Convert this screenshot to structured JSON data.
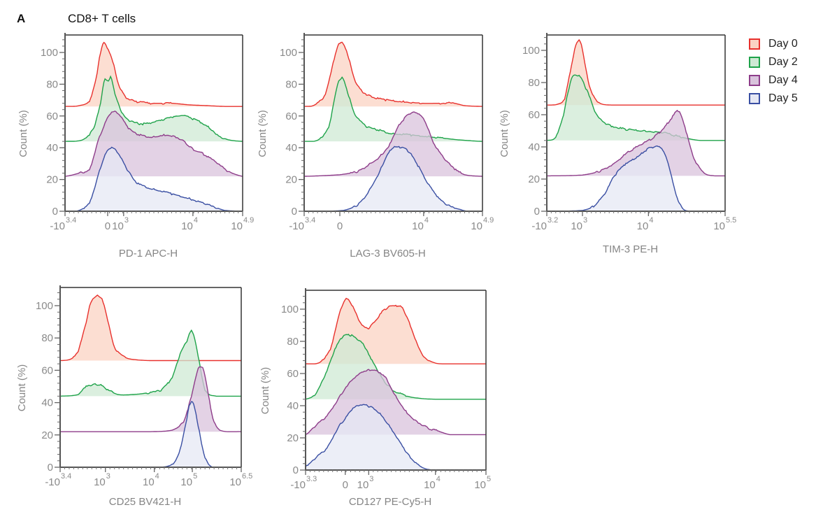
{
  "figure": {
    "panel_letter": "A",
    "title": "CD8+ T cells"
  },
  "legend": [
    {
      "label": "Day 0",
      "stroke": "#e8312d",
      "fill": "#fbd3c3"
    },
    {
      "label": "Day 2",
      "stroke": "#1fa34a",
      "fill": "#cfe9d4"
    },
    {
      "label": "Day 4",
      "stroke": "#8e3d8a",
      "fill": "#d9c3dc"
    },
    {
      "label": "Day 5",
      "stroke": "#3a4fa3",
      "fill": "#e6e8f4"
    }
  ],
  "chart_data": [
    {
      "type": "area",
      "title": "",
      "xlabel": "PD-1 APC-H",
      "ylabel": "Count  (%)",
      "ylim": [
        0,
        110
      ],
      "yticks": [
        0,
        20,
        40,
        60,
        80,
        100
      ],
      "xticks": [
        {
          "base": "-10",
          "exp": "3.4",
          "pos": 0.0
        },
        {
          "base": "0",
          "exp": "",
          "pos": 0.24
        },
        {
          "base": "10",
          "exp": "3",
          "pos": 0.33
        },
        {
          "base": "10",
          "exp": "4",
          "pos": 0.72
        },
        {
          "base": "10",
          "exp": "4.9",
          "pos": 1.0
        }
      ],
      "series": [
        {
          "name": "Day 0",
          "offset": 66,
          "x": [
            0,
            0.08,
            0.14,
            0.18,
            0.2,
            0.22,
            0.24,
            0.27,
            0.3,
            0.34,
            0.4,
            0.5,
            0.6,
            0.7,
            0.8,
            0.9,
            1.0
          ],
          "y": [
            0,
            0.5,
            4,
            20,
            34,
            40,
            36,
            28,
            14,
            6,
            3,
            2,
            2,
            1,
            0.5,
            0,
            0
          ]
        },
        {
          "name": "Day 2",
          "offset": 44,
          "x": [
            0,
            0.1,
            0.16,
            0.2,
            0.22,
            0.24,
            0.26,
            0.28,
            0.32,
            0.36,
            0.44,
            0.52,
            0.6,
            0.66,
            0.72,
            0.8,
            0.86,
            0.92,
            1.0
          ],
          "y": [
            0,
            1,
            8,
            24,
            38,
            38,
            40,
            30,
            18,
            13,
            11,
            13,
            15,
            16,
            14,
            10,
            4,
            1,
            0
          ]
        },
        {
          "name": "Day 4",
          "offset": 22,
          "x": [
            0,
            0.08,
            0.14,
            0.18,
            0.22,
            0.26,
            0.3,
            0.36,
            0.42,
            0.5,
            0.56,
            0.62,
            0.68,
            0.72,
            0.78,
            0.86,
            0.92,
            1.0
          ],
          "y": [
            0,
            2,
            5,
            20,
            32,
            40,
            39,
            30,
            26,
            25,
            26,
            25,
            21,
            17,
            14,
            8,
            3,
            0
          ]
        },
        {
          "name": "Day 5",
          "offset": 0,
          "x": [
            0,
            0.08,
            0.14,
            0.18,
            0.22,
            0.26,
            0.3,
            0.34,
            0.4,
            0.5,
            0.6,
            0.7,
            0.78,
            0.86,
            0.9,
            1.0
          ],
          "y": [
            0,
            0.5,
            6,
            20,
            34,
            40,
            36,
            28,
            18,
            14,
            11,
            8,
            5,
            2,
            0.5,
            0
          ]
        }
      ]
    },
    {
      "type": "area",
      "title": "",
      "xlabel": "LAG-3 BV605-H",
      "ylabel": "Count  (%)",
      "ylim": [
        0,
        110
      ],
      "yticks": [
        0,
        20,
        40,
        60,
        80,
        100
      ],
      "xticks": [
        {
          "base": "-10",
          "exp": "3.4",
          "pos": 0.0
        },
        {
          "base": "0",
          "exp": "",
          "pos": 0.2
        },
        {
          "base": "10",
          "exp": "4",
          "pos": 0.67
        },
        {
          "base": "10",
          "exp": "4.9",
          "pos": 1.0
        }
      ],
      "series": [
        {
          "name": "Day 0",
          "offset": 66,
          "x": [
            0,
            0.06,
            0.12,
            0.16,
            0.2,
            0.24,
            0.28,
            0.32,
            0.38,
            0.46,
            0.56,
            0.66,
            0.76,
            0.84,
            0.9,
            1.0
          ],
          "y": [
            0,
            1,
            8,
            26,
            40,
            34,
            18,
            10,
            6,
            4,
            3,
            2,
            2,
            2,
            0.5,
            0
          ]
        },
        {
          "name": "Day 2",
          "offset": 44,
          "x": [
            0,
            0.08,
            0.14,
            0.18,
            0.21,
            0.24,
            0.28,
            0.34,
            0.42,
            0.5,
            0.6,
            0.7,
            0.78,
            0.86,
            1.0
          ],
          "y": [
            0,
            1,
            10,
            32,
            40,
            32,
            18,
            10,
            7,
            5,
            4,
            3,
            2,
            1,
            0
          ]
        },
        {
          "name": "Day 4",
          "offset": 22,
          "x": [
            0,
            0.2,
            0.3,
            0.36,
            0.42,
            0.48,
            0.52,
            0.56,
            0.6,
            0.64,
            0.68,
            0.72,
            0.78,
            0.84,
            0.9,
            1.0
          ],
          "y": [
            0,
            1,
            3,
            7,
            12,
            20,
            30,
            36,
            40,
            39,
            34,
            22,
            12,
            5,
            1,
            0
          ]
        },
        {
          "name": "Day 5",
          "offset": 0,
          "x": [
            0,
            0.22,
            0.3,
            0.36,
            0.42,
            0.46,
            0.5,
            0.54,
            0.58,
            0.62,
            0.68,
            0.74,
            0.8,
            0.88,
            0.92,
            1.0
          ],
          "y": [
            0,
            0.5,
            4,
            12,
            24,
            34,
            40,
            40,
            38,
            32,
            20,
            10,
            4,
            1,
            0,
            0
          ]
        }
      ]
    },
    {
      "type": "area",
      "title": "",
      "xlabel": "TIM-3 PE-H",
      "ylabel": "Count  (%)",
      "ylim": [
        0,
        110
      ],
      "yticks": [
        0,
        20,
        40,
        60,
        80,
        100
      ],
      "xticks": [
        {
          "base": "-10",
          "exp": "3.2",
          "pos": 0.0
        },
        {
          "base": "10",
          "exp": "3",
          "pos": 0.2
        },
        {
          "base": "10",
          "exp": "4",
          "pos": 0.57
        },
        {
          "base": "10",
          "exp": "5.5",
          "pos": 1.0
        }
      ],
      "series": [
        {
          "name": "Day 0",
          "offset": 66,
          "x": [
            0,
            0.06,
            0.1,
            0.13,
            0.16,
            0.18,
            0.2,
            0.23,
            0.26,
            0.3,
            0.36,
            0.5,
            1.0
          ],
          "y": [
            0,
            0.5,
            4,
            20,
            36,
            40,
            34,
            16,
            6,
            1,
            0,
            0,
            0
          ]
        },
        {
          "name": "Day 2",
          "offset": 44,
          "x": [
            0,
            0.05,
            0.09,
            0.12,
            0.14,
            0.18,
            0.22,
            0.28,
            0.34,
            0.44,
            0.54,
            0.64,
            0.72,
            0.8,
            0.86,
            1.0
          ],
          "y": [
            0,
            2,
            14,
            30,
            39,
            40,
            32,
            16,
            10,
            7,
            6,
            5,
            3,
            1,
            0,
            0
          ]
        },
        {
          "name": "Day 4",
          "offset": 22,
          "x": [
            0,
            0.2,
            0.3,
            0.38,
            0.46,
            0.54,
            0.6,
            0.66,
            0.7,
            0.74,
            0.78,
            0.82,
            0.88,
            0.94,
            1.0
          ],
          "y": [
            0,
            0.5,
            3,
            8,
            15,
            20,
            24,
            30,
            36,
            40,
            28,
            12,
            2,
            0,
            0
          ]
        },
        {
          "name": "Day 5",
          "offset": 0,
          "x": [
            0,
            0.2,
            0.26,
            0.32,
            0.38,
            0.44,
            0.5,
            0.56,
            0.6,
            0.64,
            0.68,
            0.72,
            0.76,
            0.8,
            1.0
          ],
          "y": [
            0,
            0.5,
            3,
            10,
            22,
            29,
            33,
            38,
            40,
            39,
            30,
            12,
            2,
            0,
            0
          ]
        }
      ]
    },
    {
      "type": "area",
      "title": "",
      "xlabel": "CD25 BV421-H",
      "ylabel": "Count  (%)",
      "ylim": [
        0,
        110
      ],
      "yticks": [
        0,
        20,
        40,
        60,
        80,
        100
      ],
      "xticks": [
        {
          "base": "-10",
          "exp": "3.4",
          "pos": 0.0
        },
        {
          "base": "10",
          "exp": "3",
          "pos": 0.25
        },
        {
          "base": "10",
          "exp": "4",
          "pos": 0.52
        },
        {
          "base": "10",
          "exp": "5",
          "pos": 0.73
        },
        {
          "base": "10",
          "exp": "6.5",
          "pos": 1.0
        }
      ],
      "series": [
        {
          "name": "Day 0",
          "offset": 66,
          "x": [
            0,
            0.06,
            0.1,
            0.14,
            0.17,
            0.2,
            0.23,
            0.26,
            0.3,
            0.36,
            0.42,
            0.5,
            1.0
          ],
          "y": [
            0,
            1,
            6,
            22,
            36,
            40,
            38,
            26,
            8,
            2,
            0.5,
            0,
            0
          ]
        },
        {
          "name": "Day 2",
          "offset": 44,
          "x": [
            0,
            0.1,
            0.14,
            0.18,
            0.22,
            0.26,
            0.32,
            0.4,
            0.48,
            0.56,
            0.62,
            0.66,
            0.7,
            0.73,
            0.76,
            0.8,
            0.86,
            1.0
          ],
          "y": [
            0,
            1,
            6,
            7,
            7,
            4,
            1,
            1,
            2,
            4,
            12,
            25,
            34,
            40,
            26,
            4,
            0,
            0
          ]
        },
        {
          "name": "Day 4",
          "offset": 22,
          "x": [
            0,
            0.5,
            0.62,
            0.68,
            0.72,
            0.76,
            0.78,
            0.8,
            0.84,
            0.88,
            1.0
          ],
          "y": [
            0,
            0,
            1,
            6,
            20,
            38,
            40,
            34,
            10,
            1,
            0
          ]
        },
        {
          "name": "Day 5",
          "offset": 0,
          "x": [
            0,
            0.56,
            0.62,
            0.66,
            0.7,
            0.72,
            0.74,
            0.76,
            0.8,
            0.84,
            1.0
          ],
          "y": [
            0,
            0,
            2,
            10,
            30,
            40,
            38,
            26,
            6,
            0,
            0
          ]
        }
      ]
    },
    {
      "type": "area",
      "title": "",
      "xlabel": "CD127 PE-Cy5-H",
      "ylabel": "Count  (%)",
      "ylim": [
        0,
        110
      ],
      "yticks": [
        0,
        20,
        40,
        60,
        80,
        100
      ],
      "xticks": [
        {
          "base": "-10",
          "exp": "3.3",
          "pos": 0.0
        },
        {
          "base": "0",
          "exp": "",
          "pos": 0.22
        },
        {
          "base": "10",
          "exp": "3",
          "pos": 0.35
        },
        {
          "base": "10",
          "exp": "4",
          "pos": 0.72
        },
        {
          "base": "10",
          "exp": "5",
          "pos": 1.0
        }
      ],
      "series": [
        {
          "name": "Day 0",
          "offset": 66,
          "x": [
            0,
            0.08,
            0.14,
            0.18,
            0.22,
            0.26,
            0.3,
            0.34,
            0.38,
            0.44,
            0.5,
            0.54,
            0.58,
            0.62,
            0.66,
            0.72,
            0.78,
            1.0
          ],
          "y": [
            0,
            1,
            10,
            28,
            40,
            36,
            26,
            22,
            26,
            34,
            36,
            34,
            24,
            12,
            4,
            0.5,
            0,
            0
          ]
        },
        {
          "name": "Day 2",
          "offset": 44,
          "x": [
            0,
            0.06,
            0.12,
            0.16,
            0.2,
            0.24,
            0.28,
            0.32,
            0.36,
            0.42,
            0.48,
            0.56,
            0.64,
            0.72,
            1.0
          ],
          "y": [
            0,
            4,
            18,
            30,
            38,
            40,
            38,
            34,
            26,
            14,
            6,
            2,
            0.5,
            0,
            0
          ]
        },
        {
          "name": "Day 4",
          "offset": 22,
          "x": [
            0,
            0.06,
            0.12,
            0.18,
            0.24,
            0.3,
            0.34,
            0.38,
            0.44,
            0.5,
            0.56,
            0.62,
            0.68,
            0.74,
            0.8,
            1.0
          ],
          "y": [
            0,
            6,
            12,
            22,
            32,
            38,
            40,
            40,
            36,
            24,
            14,
            8,
            4,
            2,
            0,
            0
          ]
        },
        {
          "name": "Day 5",
          "offset": 0,
          "x": [
            0,
            0.06,
            0.12,
            0.18,
            0.22,
            0.26,
            0.3,
            0.34,
            0.38,
            0.42,
            0.46,
            0.52,
            0.58,
            0.64,
            0.7,
            1.0
          ],
          "y": [
            2,
            8,
            14,
            26,
            32,
            38,
            40,
            40,
            38,
            34,
            28,
            18,
            8,
            2,
            0,
            0
          ]
        }
      ]
    }
  ]
}
